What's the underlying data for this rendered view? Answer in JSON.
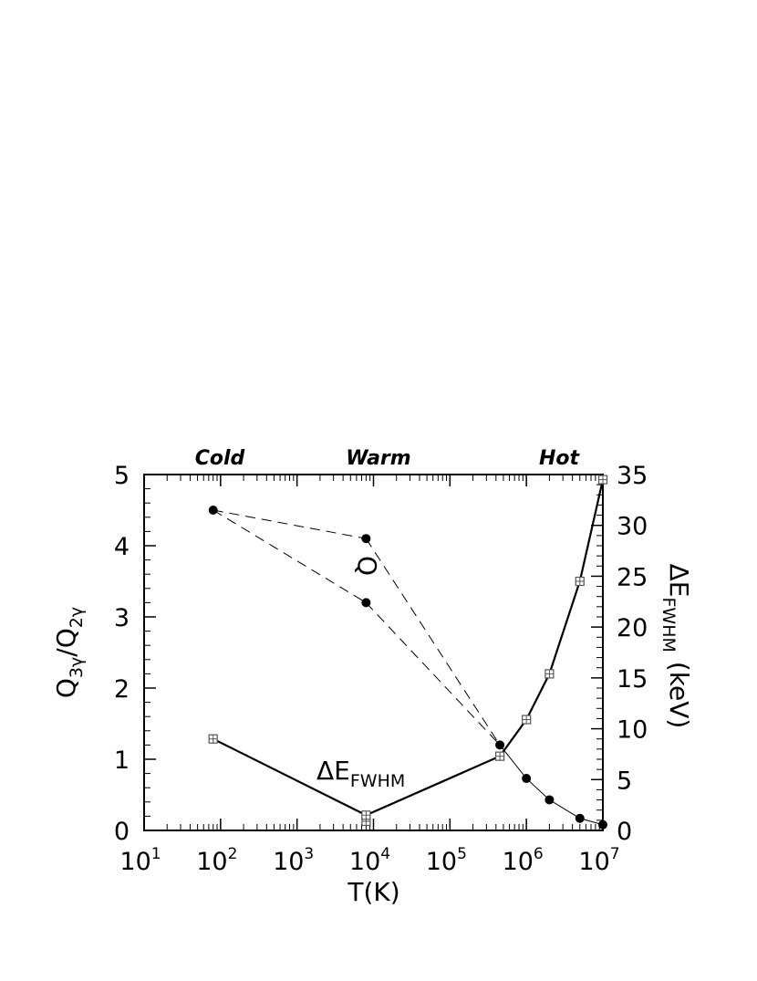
{
  "chart_data": {
    "type": "line",
    "xlabel": "T(K)",
    "x_scale": "log",
    "xlim": [
      10,
      10000000
    ],
    "x_ticks": [
      {
        "base": "10",
        "exp": "1"
      },
      {
        "base": "10",
        "exp": "2"
      },
      {
        "base": "10",
        "exp": "3"
      },
      {
        "base": "10",
        "exp": "4"
      },
      {
        "base": "10",
        "exp": "5"
      },
      {
        "base": "10",
        "exp": "6"
      },
      {
        "base": "10",
        "exp": "7"
      }
    ],
    "ylabel_left": {
      "q1": "Q",
      "s1": "3γ",
      "slash": "/",
      "q2": "Q",
      "s2": "2γ"
    },
    "ylim_left": [
      0,
      5
    ],
    "yticks_left": [
      "0",
      "1",
      "2",
      "3",
      "4",
      "5"
    ],
    "ylabel_right": {
      "main": "ΔE",
      "sub": "FWHM",
      "unit": "(keV)"
    },
    "ylim_right": [
      0,
      35
    ],
    "yticks_right": [
      "0",
      "5",
      "10",
      "15",
      "20",
      "25",
      "30",
      "35"
    ],
    "regions": [
      "Cold",
      "Warm",
      "Hot"
    ],
    "annotations": {
      "q_label": "Q",
      "de_label": {
        "main": "ΔE",
        "sub": "FWHM"
      }
    },
    "series": [
      {
        "axis": "left",
        "marker": "filled-circle",
        "line": "dashed",
        "points": [
          {
            "x": 80,
            "y": 4.5
          },
          {
            "x": 8000,
            "y": 4.1
          },
          {
            "x": 8000,
            "y": 3.2
          },
          {
            "x": 450000,
            "y": 1.2
          },
          {
            "x": 1000000,
            "y": 0.73
          },
          {
            "x": 2000000,
            "y": 0.43
          },
          {
            "x": 5000000,
            "y": 0.17
          },
          {
            "x": 10000000,
            "y": 0.08
          }
        ]
      },
      {
        "axis": "right",
        "marker": "open-square",
        "line": "solid",
        "points": [
          {
            "x": 80,
            "y": 9.0
          },
          {
            "x": 8000,
            "y": 1.5
          },
          {
            "x": 8000,
            "y": 0.9
          },
          {
            "x": 450000,
            "y": 7.3
          },
          {
            "x": 1000000,
            "y": 10.9
          },
          {
            "x": 2000000,
            "y": 15.4
          },
          {
            "x": 5000000,
            "y": 24.5
          },
          {
            "x": 10000000,
            "y": 34.5
          }
        ]
      }
    ]
  }
}
